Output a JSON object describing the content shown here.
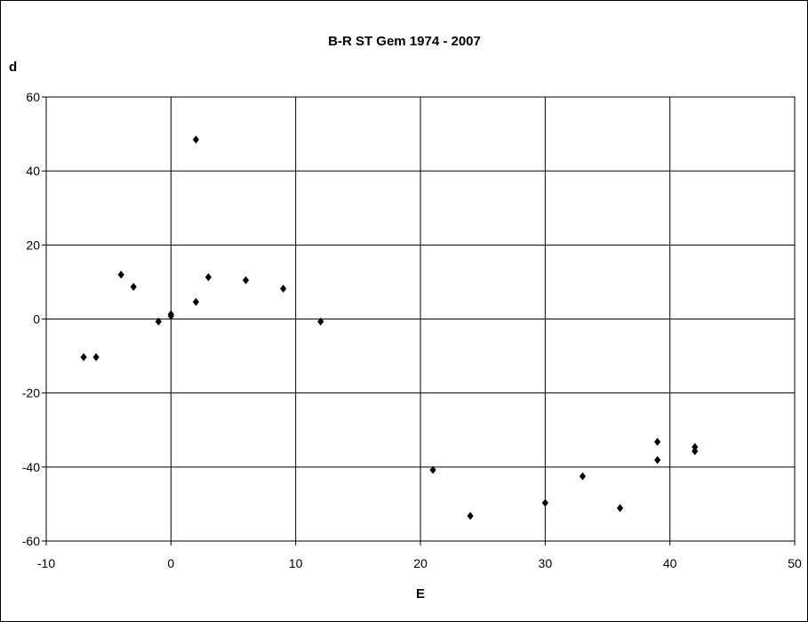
{
  "chart_data": {
    "type": "scatter",
    "title": "B-R  ST Gem 1974 - 2007",
    "xlabel": "E",
    "ylabel": "d",
    "xlim": [
      -10,
      50
    ],
    "ylim": [
      -60,
      60
    ],
    "x_ticks": [
      -10,
      0,
      10,
      20,
      30,
      40,
      50
    ],
    "y_ticks": [
      -60,
      -40,
      -20,
      0,
      20,
      40,
      60
    ],
    "grid": true,
    "legend": "none",
    "marker": "diamond",
    "marker_color": "#000000",
    "series": [
      {
        "points": [
          {
            "x": -7,
            "y": -10.3
          },
          {
            "x": -6,
            "y": -10.3
          },
          {
            "x": -4,
            "y": 12
          },
          {
            "x": -3,
            "y": 8.7
          },
          {
            "x": -1,
            "y": -0.7
          },
          {
            "x": 0,
            "y": 1.3
          },
          {
            "x": 0,
            "y": 0.8
          },
          {
            "x": 2,
            "y": 48.5
          },
          {
            "x": 2,
            "y": 4.6
          },
          {
            "x": 3,
            "y": 11.3
          },
          {
            "x": 6,
            "y": 10.5
          },
          {
            "x": 9,
            "y": 8.2
          },
          {
            "x": 12,
            "y": -0.7
          },
          {
            "x": 21,
            "y": -40.8
          },
          {
            "x": 24,
            "y": -53.2
          },
          {
            "x": 30,
            "y": -49.7
          },
          {
            "x": 33,
            "y": -42.5
          },
          {
            "x": 36,
            "y": -51.1
          },
          {
            "x": 39,
            "y": -33.2
          },
          {
            "x": 39,
            "y": -38.1
          },
          {
            "x": 42,
            "y": -34.6
          },
          {
            "x": 42,
            "y": -35.7
          }
        ]
      }
    ]
  }
}
